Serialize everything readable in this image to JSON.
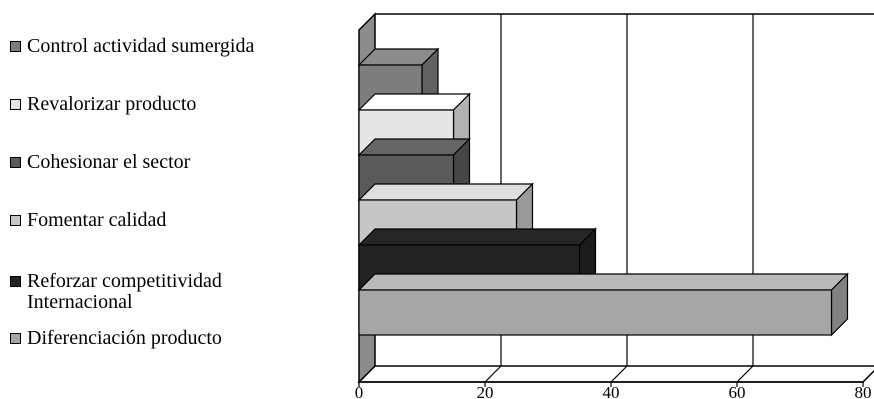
{
  "chart_data": {
    "type": "bar",
    "orientation": "horizontal",
    "style": "3d",
    "categories": [
      "Diferenciación producto",
      "Reforzar competitividad Internacional",
      "Fomentar calidad",
      "Cohesionar el sector",
      "Revalorizar producto",
      "Control actividad sumergida"
    ],
    "values": [
      75,
      35,
      25,
      15,
      15,
      10
    ],
    "xlim": [
      0,
      80
    ],
    "xticks": [
      0,
      20,
      40,
      60,
      80
    ],
    "xtick_labels": [
      "0",
      "20",
      "40",
      "60",
      "80"
    ],
    "grid": true,
    "legend_position": "left",
    "colors": [
      "#a6a6a6",
      "#222222",
      "#c6c6c6",
      "#5a5a5a",
      "#e6e6e6",
      "#7d7d7d"
    ]
  },
  "legend": {
    "items": [
      {
        "label": "Control actividad sumergida",
        "color": "#7d7d7d"
      },
      {
        "label": "Revalorizar producto",
        "color": "#e6e6e6"
      },
      {
        "label": "Cohesionar el sector",
        "color": "#5a5a5a"
      },
      {
        "label": "Fomentar calidad",
        "color": "#c6c6c6"
      },
      {
        "label": "Reforzar competitividad\nInternacional",
        "color": "#222222"
      },
      {
        "label": "Diferenciación producto",
        "color": "#a6a6a6"
      }
    ]
  }
}
